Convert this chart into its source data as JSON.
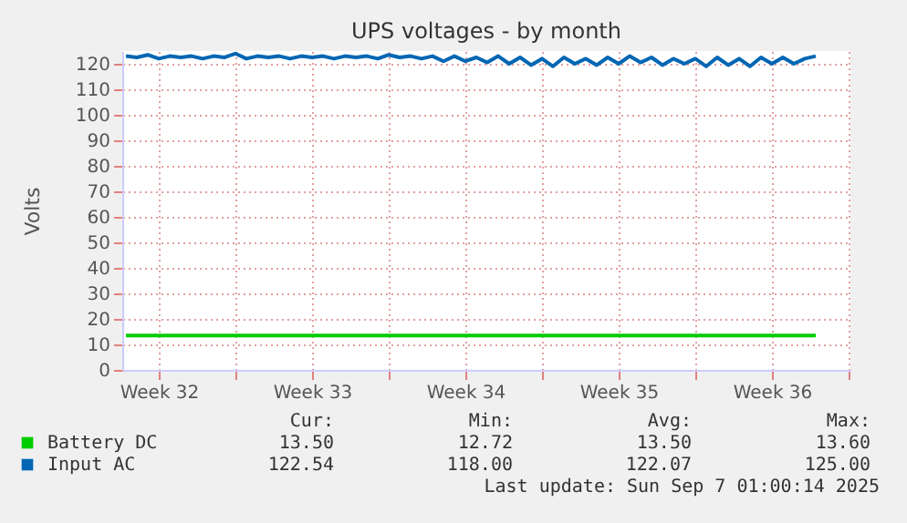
{
  "chart_data": {
    "type": "line",
    "title": "UPS voltages - by month",
    "ylabel": "Volts",
    "xlim": [
      "2025-08-05T20:00",
      "2025-09-08T02:00"
    ],
    "ylim": [
      0,
      125
    ],
    "xticks": [
      {
        "value": "2025-08-07T12:00",
        "label": "Week 32"
      },
      {
        "value": "2025-08-11",
        "label": null
      },
      {
        "value": "2025-08-14T12:00",
        "label": "Week 33"
      },
      {
        "value": "2025-08-18",
        "label": null
      },
      {
        "value": "2025-08-21T12:00",
        "label": "Week 34"
      },
      {
        "value": "2025-08-25",
        "label": null
      },
      {
        "value": "2025-08-28T12:00",
        "label": "Week 35"
      },
      {
        "value": "2025-09-01",
        "label": null
      },
      {
        "value": "2025-09-04T12:00",
        "label": "Week 36"
      },
      {
        "value": "2025-09-08",
        "label": null
      }
    ],
    "yticks": [
      0,
      10,
      20,
      30,
      40,
      50,
      60,
      70,
      80,
      90,
      100,
      110,
      120
    ],
    "grid": true,
    "legend": "bottom",
    "line_style": "solid",
    "marker": "none",
    "x": [
      "2025-08-06T00:00",
      "2025-08-06T12:00",
      "2025-08-07T00:00",
      "2025-08-07T12:00",
      "2025-08-08T00:00",
      "2025-08-08T12:00",
      "2025-08-09T00:00",
      "2025-08-09T12:00",
      "2025-08-10T00:00",
      "2025-08-10T12:00",
      "2025-08-11T00:00",
      "2025-08-11T12:00",
      "2025-08-12T00:00",
      "2025-08-12T12:00",
      "2025-08-13T00:00",
      "2025-08-13T12:00",
      "2025-08-14T00:00",
      "2025-08-14T12:00",
      "2025-08-15T00:00",
      "2025-08-15T12:00",
      "2025-08-16T00:00",
      "2025-08-16T12:00",
      "2025-08-17T00:00",
      "2025-08-17T12:00",
      "2025-08-18T00:00",
      "2025-08-18T12:00",
      "2025-08-19T00:00",
      "2025-08-19T12:00",
      "2025-08-20T00:00",
      "2025-08-20T12:00",
      "2025-08-21T00:00",
      "2025-08-21T12:00",
      "2025-08-22T00:00",
      "2025-08-22T12:00",
      "2025-08-23T00:00",
      "2025-08-23T12:00",
      "2025-08-24T00:00",
      "2025-08-24T12:00",
      "2025-08-25T00:00",
      "2025-08-25T12:00",
      "2025-08-26T00:00",
      "2025-08-26T12:00",
      "2025-08-27T00:00",
      "2025-08-27T12:00",
      "2025-08-28T00:00",
      "2025-08-28T12:00",
      "2025-08-29T00:00",
      "2025-08-29T12:00",
      "2025-08-30T00:00",
      "2025-08-30T12:00",
      "2025-08-31T00:00",
      "2025-08-31T12:00",
      "2025-09-01T00:00",
      "2025-09-01T12:00",
      "2025-09-02T00:00",
      "2025-09-02T12:00",
      "2025-09-03T00:00",
      "2025-09-03T12:00",
      "2025-09-04T00:00",
      "2025-09-04T12:00",
      "2025-09-05T00:00",
      "2025-09-05T12:00",
      "2025-09-06T00:00",
      "2025-09-06T12:00"
    ],
    "series": [
      {
        "name": "Battery DC",
        "color": "#00cc00",
        "values": [
          13.5,
          13.5,
          13.5,
          13.5,
          13.5,
          13.5,
          13.5,
          13.5,
          13.5,
          13.5,
          13.5,
          13.5,
          13.5,
          13.5,
          13.5,
          13.5,
          13.5,
          13.5,
          13.5,
          13.5,
          13.5,
          13.5,
          13.5,
          13.5,
          13.5,
          13.5,
          13.5,
          13.5,
          13.5,
          13.5,
          13.5,
          13.5,
          13.5,
          13.5,
          13.5,
          13.5,
          13.5,
          13.5,
          13.5,
          13.5,
          13.5,
          13.5,
          13.5,
          13.5,
          13.5,
          13.5,
          13.5,
          13.5,
          13.5,
          13.5,
          13.5,
          13.5,
          13.5,
          13.5,
          13.5,
          13.5,
          13.5,
          13.5,
          13.5,
          13.5,
          13.5,
          13.5,
          13.5,
          13.5
        ]
      },
      {
        "name": "Input AC",
        "color": "#0066b3",
        "values": [
          123,
          122.5,
          123.5,
          122,
          123,
          122.5,
          123,
          122,
          123,
          122.5,
          124,
          122,
          123,
          122.5,
          123,
          122,
          123,
          122.5,
          123,
          122,
          123,
          122.5,
          123,
          122,
          123.5,
          122.5,
          123,
          122,
          123,
          121,
          123,
          121,
          122.5,
          120.5,
          123,
          120,
          122.5,
          119.5,
          122,
          119,
          122.5,
          120,
          122,
          119.5,
          122.5,
          120,
          123,
          120.5,
          122.5,
          119.5,
          122,
          120,
          122,
          119,
          122.5,
          119.5,
          122,
          119,
          122.5,
          120,
          122.5,
          120,
          122,
          123
        ]
      }
    ],
    "annotations": [
      "Cur:",
      "Min:",
      "Avg:",
      "Max:",
      "13.50",
      "12.72",
      "13.50",
      "13.60",
      "122.54",
      "118.00",
      "122.07",
      "125.00",
      "Last update: Sun Sep  7 01:00:14 2025"
    ]
  }
}
